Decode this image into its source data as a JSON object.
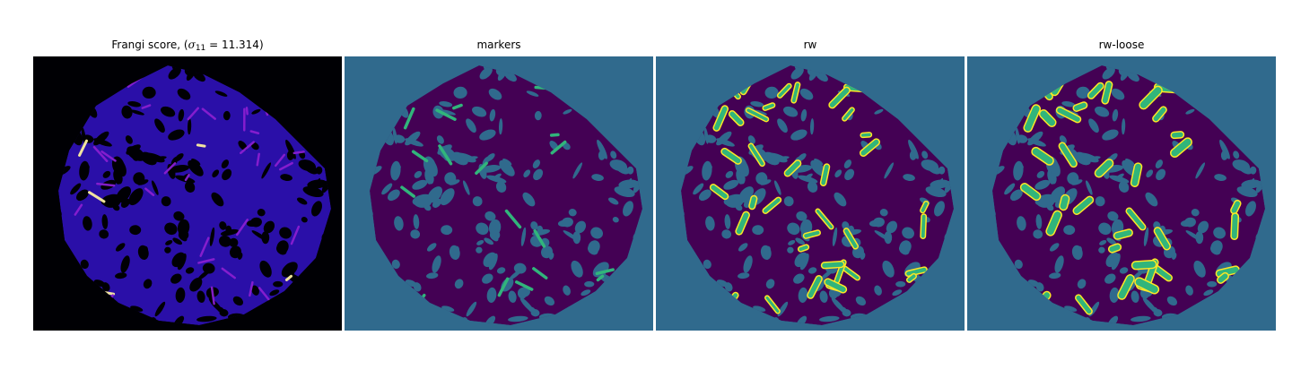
{
  "panels": [
    {
      "title_prefix": "Frangi score, (",
      "title_symbol": "σ",
      "title_subscript": "11",
      "title_suffix": " = 11.314)",
      "colormap": "magma"
    },
    {
      "title": "markers",
      "colormap": "viridis"
    },
    {
      "title": "rw",
      "colormap": "viridis"
    },
    {
      "title": "rw-loose",
      "colormap": "viridis"
    }
  ],
  "colors": {
    "viridis_background": "#306a8d",
    "viridis_region": "#440154",
    "viridis_marker": "#31b57b",
    "viridis_highlight": "#fde725",
    "magma_background": "#000004",
    "magma_region": "#2a0fa8",
    "magma_ridge": "#8a1fd0",
    "magma_peak": "#fcf0a0"
  }
}
